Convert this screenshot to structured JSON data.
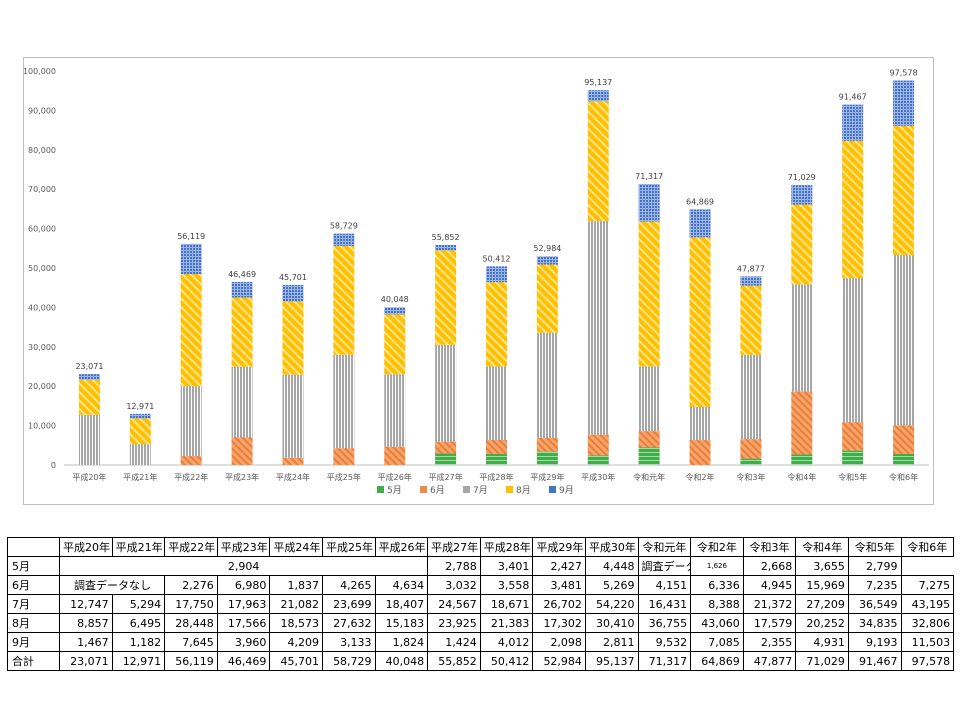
{
  "chart_data": {
    "type": "bar",
    "stacked": true,
    "categories": [
      "平成20年",
      "平成21年",
      "平成22年",
      "平成23年",
      "平成24年",
      "平成25年",
      "平成26年",
      "平成27年",
      "平成28年",
      "平成29年",
      "平成30年",
      "令和元年",
      "令和2年",
      "令和3年",
      "令和4年",
      "令和5年",
      "令和6年"
    ],
    "series": [
      {
        "name": "5月",
        "color": "#3fae49",
        "values": [
          0,
          0,
          0,
          0,
          0,
          0,
          0,
          2904,
          2788,
          3401,
          2427,
          4448,
          0,
          1626,
          2668,
          3655,
          2799
        ]
      },
      {
        "name": "6月",
        "color": "#f08a4b",
        "values": [
          0,
          0,
          2276,
          6980,
          1837,
          4265,
          4634,
          3032,
          3558,
          3481,
          5269,
          4151,
          6336,
          4945,
          15969,
          7235,
          7275
        ]
      },
      {
        "name": "7月",
        "color": "#a6a6a6",
        "values": [
          12747,
          5294,
          17750,
          17963,
          21082,
          23699,
          18407,
          24567,
          18671,
          26702,
          54220,
          16431,
          8388,
          21372,
          27209,
          36549,
          43195
        ]
      },
      {
        "name": "8月",
        "color": "#ffc000",
        "values": [
          8857,
          6495,
          28448,
          17566,
          18573,
          27632,
          15183,
          23925,
          21383,
          17302,
          30410,
          36755,
          43060,
          17579,
          20252,
          34835,
          32806
        ]
      },
      {
        "name": "9月",
        "color": "#4472c4",
        "values": [
          1467,
          1182,
          7645,
          3960,
          4209,
          3133,
          1824,
          1424,
          4012,
          2098,
          2811,
          9532,
          7085,
          2355,
          4931,
          9193,
          11503
        ]
      }
    ],
    "totals": [
      23071,
      12971,
      56119,
      46469,
      45701,
      58729,
      40048,
      55852,
      50412,
      52984,
      95137,
      71317,
      64869,
      47877,
      71029,
      91467,
      97578
    ],
    "total_labels": [
      "23,071",
      "12,971",
      "56,119",
      "46,469",
      "45,701",
      "58,729",
      "40,048",
      "55,852",
      "50,412",
      "52,984",
      "95,137",
      "71,317",
      "64,869",
      "47,877",
      "71,029",
      "91,467",
      "97,578"
    ],
    "ylim": [
      0,
      100000
    ],
    "yticks": [
      0,
      10000,
      20000,
      30000,
      40000,
      50000,
      60000,
      70000,
      80000,
      90000,
      100000
    ],
    "ytick_labels": [
      "0",
      "10,000",
      "20,000",
      "30,000",
      "40,000",
      "50,000",
      "60,000",
      "70,000",
      "80,000",
      "90,000",
      "100,000"
    ],
    "legend_position": "bottom",
    "grid": false
  },
  "table": {
    "headers": [
      "",
      "平成20年",
      "平成21年",
      "平成22年",
      "平成23年",
      "平成24年",
      "平成25年",
      "平成26年",
      "平成27年",
      "平成28年",
      "平成29年",
      "平成30年",
      "令和元年",
      "令和2年",
      "令和3年",
      "令和4年",
      "令和5年",
      "令和6年"
    ],
    "no_data_label": "調査データなし",
    "rows": [
      {
        "label": "5月",
        "cells": [
          "2,904",
          "2,788",
          "3,401",
          "2,427",
          "4,448",
          "調査データなし",
          "1,626",
          "2,668",
          "3,655",
          "2,799"
        ]
      },
      {
        "label": "6月",
        "cells": [
          "調査データなし",
          "2,276",
          "6,980",
          "1,837",
          "4,265",
          "4,634",
          "3,032",
          "3,558",
          "3,481",
          "5,269",
          "4,151",
          "6,336",
          "4,945",
          "15,969",
          "7,235",
          "7,275"
        ]
      },
      {
        "label": "7月",
        "cells": [
          "12,747",
          "5,294",
          "17,750",
          "17,963",
          "21,082",
          "23,699",
          "18,407",
          "24,567",
          "18,671",
          "26,702",
          "54,220",
          "16,431",
          "8,388",
          "21,372",
          "27,209",
          "36,549",
          "43,195"
        ]
      },
      {
        "label": "8月",
        "cells": [
          "8,857",
          "6,495",
          "28,448",
          "17,566",
          "18,573",
          "27,632",
          "15,183",
          "23,925",
          "21,383",
          "17,302",
          "30,410",
          "36,755",
          "43,060",
          "17,579",
          "20,252",
          "34,835",
          "32,806"
        ]
      },
      {
        "label": "9月",
        "cells": [
          "1,467",
          "1,182",
          "7,645",
          "3,960",
          "4,209",
          "3,133",
          "1,824",
          "1,424",
          "4,012",
          "2,098",
          "2,811",
          "9,532",
          "7,085",
          "2,355",
          "4,931",
          "9,193",
          "11,503"
        ]
      },
      {
        "label": "合計",
        "cells": [
          "23,071",
          "12,971",
          "56,119",
          "46,469",
          "45,701",
          "58,729",
          "40,048",
          "55,852",
          "50,412",
          "52,984",
          "95,137",
          "71,317",
          "64,869",
          "47,877",
          "71,029",
          "91,467",
          "97,578"
        ]
      }
    ]
  }
}
